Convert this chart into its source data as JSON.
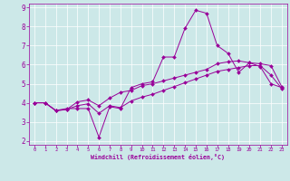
{
  "xlabel": "Windchill (Refroidissement éolien,°C)",
  "bg_color": "#cce8e8",
  "line_color": "#990099",
  "grid_color": "#ffffff",
  "spine_color": "#990099",
  "xlim": [
    -0.5,
    23.5
  ],
  "ylim": [
    1.8,
    9.2
  ],
  "yticks": [
    2,
    3,
    4,
    5,
    6,
    7,
    8,
    9
  ],
  "xticks": [
    0,
    1,
    2,
    3,
    4,
    5,
    6,
    7,
    8,
    9,
    10,
    11,
    12,
    13,
    14,
    15,
    16,
    17,
    18,
    19,
    20,
    21,
    22,
    23
  ],
  "line1_x": [
    0,
    1,
    2,
    3,
    4,
    5,
    6,
    7,
    8,
    9,
    10,
    11,
    12,
    13,
    14,
    15,
    16,
    17,
    18,
    19,
    20,
    21,
    22,
    23
  ],
  "line1_y": [
    4.0,
    4.0,
    3.6,
    3.7,
    3.7,
    3.7,
    2.2,
    3.8,
    3.7,
    4.8,
    5.0,
    5.1,
    6.4,
    6.4,
    7.9,
    8.85,
    8.7,
    7.0,
    6.6,
    5.6,
    6.1,
    5.9,
    5.0,
    4.8
  ],
  "line2_x": [
    0,
    1,
    2,
    3,
    4,
    5,
    6,
    7,
    8,
    9,
    10,
    11,
    12,
    13,
    14,
    15,
    16,
    17,
    18,
    19,
    20,
    21,
    22,
    23
  ],
  "line2_y": [
    4.0,
    4.0,
    3.6,
    3.65,
    4.05,
    4.15,
    3.85,
    4.25,
    4.55,
    4.65,
    4.9,
    5.0,
    5.15,
    5.3,
    5.45,
    5.6,
    5.75,
    6.05,
    6.15,
    6.2,
    6.1,
    6.05,
    5.95,
    4.85
  ],
  "line3_x": [
    0,
    1,
    2,
    3,
    4,
    5,
    6,
    7,
    8,
    9,
    10,
    11,
    12,
    13,
    14,
    15,
    16,
    17,
    18,
    19,
    20,
    21,
    22,
    23
  ],
  "line3_y": [
    4.0,
    4.0,
    3.58,
    3.65,
    3.85,
    3.95,
    3.45,
    3.85,
    3.75,
    4.1,
    4.3,
    4.45,
    4.65,
    4.85,
    5.05,
    5.25,
    5.45,
    5.65,
    5.75,
    5.85,
    5.95,
    5.95,
    5.45,
    4.75
  ]
}
